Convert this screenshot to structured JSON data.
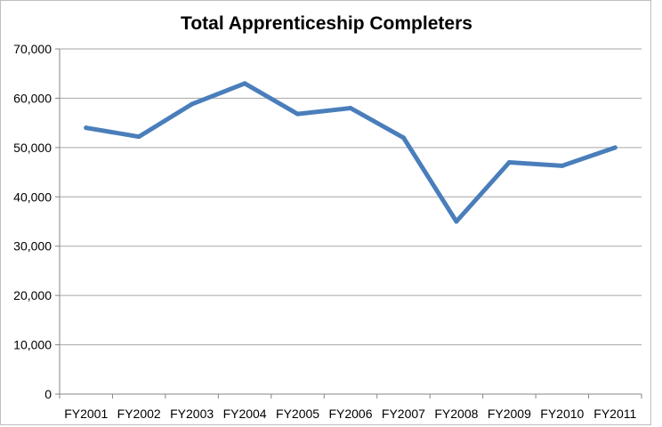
{
  "chart_data": {
    "type": "line",
    "title": "Total Apprenticeship Completers",
    "xlabel": "",
    "ylabel": "",
    "categories": [
      "FY2001",
      "FY2002",
      "FY2003",
      "FY2004",
      "FY2005",
      "FY2006",
      "FY2007",
      "FY2008",
      "FY2009",
      "FY2010",
      "FY2011"
    ],
    "series": [
      {
        "values": [
          54000,
          52200,
          58800,
          63000,
          56800,
          58000,
          52000,
          35000,
          47000,
          46300,
          50000
        ]
      }
    ],
    "ylim": [
      0,
      70000
    ],
    "yticks": [
      0,
      10000,
      20000,
      30000,
      40000,
      50000,
      60000,
      70000
    ],
    "ytick_labels": [
      "0",
      "10,000",
      "20,000",
      "30,000",
      "40,000",
      "50,000",
      "60,000",
      "70,000"
    ],
    "grid": true,
    "legend": "none",
    "colors": {
      "line": "#4a7ebb",
      "grid": "#a6a6a6",
      "axis": "#868686"
    }
  }
}
